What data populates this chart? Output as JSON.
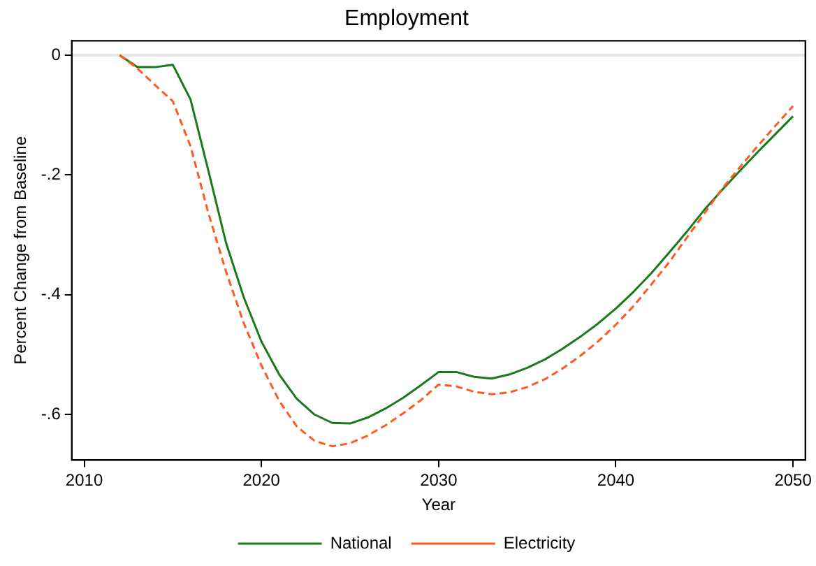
{
  "chart_data": {
    "type": "line",
    "title": "Employment",
    "xlabel": "Year",
    "ylabel": "Percent Change from Baseline",
    "x": [
      2012,
      2013,
      2014,
      2015,
      2016,
      2017,
      2018,
      2019,
      2020,
      2021,
      2022,
      2023,
      2024,
      2025,
      2026,
      2027,
      2028,
      2029,
      2030,
      2031,
      2032,
      2033,
      2034,
      2035,
      2036,
      2037,
      2038,
      2039,
      2040,
      2041,
      2042,
      2043,
      2044,
      2045,
      2046,
      2047,
      2048,
      2049,
      2050
    ],
    "series": [
      {
        "name": "National",
        "color": "#1a7a1a",
        "line_style": "solid",
        "values": [
          0,
          -0.02,
          -0.02,
          -0.016,
          -0.074,
          -0.192,
          -0.313,
          -0.404,
          -0.478,
          -0.533,
          -0.574,
          -0.6,
          -0.614,
          -0.615,
          -0.605,
          -0.59,
          -0.572,
          -0.551,
          -0.529,
          -0.529,
          -0.537,
          -0.54,
          -0.533,
          -0.522,
          -0.508,
          -0.49,
          -0.47,
          -0.448,
          -0.423,
          -0.395,
          -0.364,
          -0.33,
          -0.295,
          -0.258,
          -0.225,
          -0.193,
          -0.162,
          -0.132,
          -0.102
        ]
      },
      {
        "name": "Electricity",
        "color": "#ff5a1f",
        "line_style": "dashed",
        "values": [
          0,
          -0.022,
          -0.05,
          -0.077,
          -0.152,
          -0.263,
          -0.361,
          -0.447,
          -0.518,
          -0.577,
          -0.62,
          -0.644,
          -0.653,
          -0.648,
          -0.635,
          -0.618,
          -0.598,
          -0.576,
          -0.55,
          -0.553,
          -0.562,
          -0.566,
          -0.563,
          -0.554,
          -0.541,
          -0.523,
          -0.502,
          -0.478,
          -0.45,
          -0.419,
          -0.383,
          -0.346,
          -0.305,
          -0.264,
          -0.223,
          -0.187,
          -0.152,
          -0.118,
          -0.085
        ]
      }
    ],
    "xlim": [
      2009.3,
      2050.7
    ],
    "xticks": [
      2010,
      2020,
      2030,
      2040,
      2050
    ],
    "ylim": [
      -0.676,
      0.024
    ],
    "yticks": [
      {
        "value": 0,
        "label": "0"
      },
      {
        "value": -0.2,
        "label": "-.2"
      },
      {
        "value": -0.4,
        "label": "-.4"
      },
      {
        "value": -0.6,
        "label": "-.6"
      }
    ],
    "ref_lines": [
      {
        "axis": "y",
        "value": 0,
        "color": "#e6e6e6"
      }
    ],
    "grid": false,
    "legend": "bottom",
    "marker": "none"
  }
}
